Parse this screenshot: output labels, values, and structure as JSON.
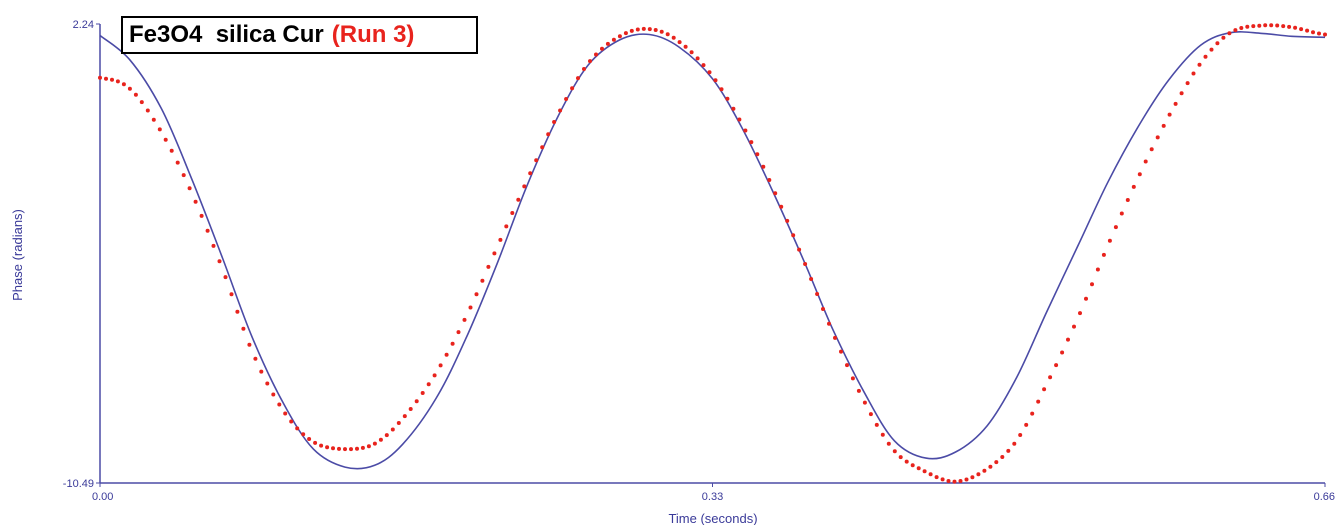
{
  "chart_data": {
    "type": "line",
    "xlabel": "Time (seconds)",
    "ylabel": "Phase (radians)",
    "xlim": [
      0.0,
      0.66
    ],
    "ylim": [
      -10.49,
      2.24
    ],
    "x_ticks": [
      {
        "value": 0.0,
        "label": "0.00"
      },
      {
        "value": 0.33,
        "label": "0.33"
      },
      {
        "value": 0.66,
        "label": "0.66"
      }
    ],
    "y_ticks": [
      {
        "value": 2.24,
        "label": "2.24"
      },
      {
        "value": -10.49,
        "label": "-10.49"
      }
    ],
    "legend": {
      "placement": "top-left",
      "entries": [
        "Fe3O4  silica Cur",
        "(Run 3)"
      ]
    },
    "series": [
      {
        "name": "Fe3O4  silica Cur",
        "style": "solid-line",
        "color": "#4b4ba6",
        "x": [
          0.0,
          0.016,
          0.033,
          0.049,
          0.066,
          0.082,
          0.099,
          0.115,
          0.132,
          0.148,
          0.163,
          0.181,
          0.197,
          0.214,
          0.23,
          0.247,
          0.263,
          0.28,
          0.296,
          0.312,
          0.33,
          0.346,
          0.362,
          0.379,
          0.395,
          0.412,
          0.428,
          0.445,
          0.461,
          0.478,
          0.494,
          0.51,
          0.527,
          0.543,
          0.56,
          0.576,
          0.593,
          0.609,
          0.626,
          0.642,
          0.66
        ],
        "y": [
          1.92,
          1.25,
          -0.1,
          -2.0,
          -4.25,
          -6.45,
          -8.3,
          -9.55,
          -10.05,
          -10.0,
          -9.42,
          -8.15,
          -6.5,
          -4.4,
          -2.25,
          -0.3,
          1.1,
          1.8,
          1.95,
          1.6,
          0.72,
          -0.65,
          -2.35,
          -4.3,
          -6.25,
          -8.0,
          -9.32,
          -9.8,
          -9.63,
          -8.9,
          -7.55,
          -5.75,
          -3.9,
          -2.15,
          -0.55,
          0.7,
          1.65,
          2.0,
          1.98,
          1.9,
          1.87
        ]
      },
      {
        "name": "(Run 3)",
        "style": "dotted",
        "color": "#e8231d",
        "x": [
          0.0,
          0.016,
          0.033,
          0.049,
          0.066,
          0.082,
          0.099,
          0.115,
          0.132,
          0.148,
          0.163,
          0.181,
          0.197,
          0.214,
          0.23,
          0.247,
          0.263,
          0.28,
          0.296,
          0.312,
          0.33,
          0.346,
          0.362,
          0.379,
          0.395,
          0.412,
          0.428,
          0.445,
          0.461,
          0.478,
          0.494,
          0.51,
          0.527,
          0.543,
          0.56,
          0.576,
          0.593,
          0.609,
          0.626,
          0.642,
          0.66
        ],
        "y": [
          0.75,
          0.45,
          -0.75,
          -2.4,
          -4.55,
          -6.85,
          -8.5,
          -9.35,
          -9.55,
          -9.4,
          -8.7,
          -7.45,
          -5.9,
          -3.95,
          -2.1,
          -0.25,
          1.15,
          1.9,
          2.1,
          1.75,
          0.8,
          -0.55,
          -2.25,
          -4.3,
          -6.35,
          -8.25,
          -9.6,
          -10.18,
          -10.45,
          -10.1,
          -9.3,
          -7.75,
          -5.9,
          -3.9,
          -1.95,
          -0.3,
          1.15,
          2.0,
          2.2,
          2.15,
          1.95
        ]
      }
    ]
  }
}
